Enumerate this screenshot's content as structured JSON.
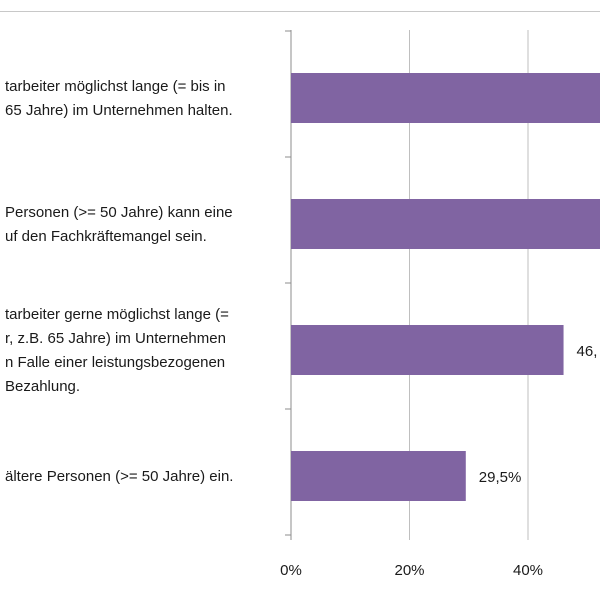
{
  "chart_data": {
    "type": "bar",
    "orientation": "horizontal",
    "categories": [
      [
        "tarbeiter möglichst lange (= bis in",
        "65 Jahre) im Unternehmen halten."
      ],
      [
        "Personen (>= 50 Jahre) kann eine",
        "uf den Fachkräftemangel sein."
      ],
      [
        "tarbeiter gerne möglichst lange (=",
        "r, z.B. 65 Jahre) im Unternehmen",
        "n Falle einer leistungsbezogenen",
        "Bezahlung."
      ],
      [
        "ältere Personen (>= 50 Jahre) ein."
      ]
    ],
    "values": [
      60,
      60,
      46,
      29.5
    ],
    "data_labels": [
      "",
      "",
      "46,",
      "29,5%"
    ],
    "xlim": [
      0,
      60
    ],
    "xticks": [
      "0%",
      "20%",
      "40%"
    ],
    "xtick_values": [
      0,
      20,
      40
    ],
    "grid": true,
    "colors": {
      "bar": "#8064a2",
      "grid": "#bfbfbf",
      "axis": "#8c8c8c"
    }
  }
}
